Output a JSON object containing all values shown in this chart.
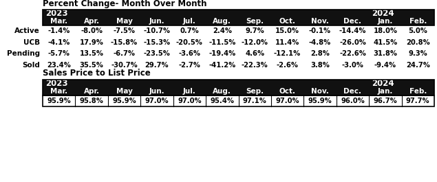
{
  "title1": "Percent Change- Month Over Month",
  "title2": "Sales Price to List Price",
  "header_months": [
    "Mar.",
    "Apr.",
    "May",
    "Jun.",
    "Jul.",
    "Aug.",
    "Sep.",
    "Oct.",
    "Nov.",
    "Dec.",
    "Jan.",
    "Feb."
  ],
  "row_labels": [
    "Active",
    "UCB",
    "Pending",
    "Sold"
  ],
  "table1_data": [
    [
      "-1.4%",
      "-8.0%",
      "-7.5%",
      "-10.7%",
      "0.7%",
      "2.4%",
      "9.7%",
      "15.0%",
      "-0.1%",
      "-14.4%",
      "18.0%",
      "5.0%"
    ],
    [
      "-4.1%",
      "17.9%",
      "-15.8%",
      "-15.3%",
      "-20.5%",
      "-11.5%",
      "-12.0%",
      "11.4%",
      "-4.8%",
      "-26.0%",
      "41.5%",
      "20.8%"
    ],
    [
      "-5.7%",
      "13.5%",
      "-6.7%",
      "-23.5%",
      "-3.6%",
      "-19.4%",
      "4.6%",
      "-12.1%",
      "2.8%",
      "-22.6%",
      "31.8%",
      "9.3%"
    ],
    [
      "23.4%",
      "35.5%",
      "-30.7%",
      "29.7%",
      "-2.7%",
      "-41.2%",
      "-22.3%",
      "-2.6%",
      "3.8%",
      "-3.0%",
      "-9.4%",
      "24.7%"
    ]
  ],
  "table2_data": [
    "95.9%",
    "95.8%",
    "95.9%",
    "97.0%",
    "97.0%",
    "95.4%",
    "97.1%",
    "97.0%",
    "95.9%",
    "96.0%",
    "96.7%",
    "97.7%"
  ],
  "header_bg": "#111111",
  "border_color": "#000000",
  "title_fontsize": 8.5,
  "header_fontsize": 7.5,
  "cell_fontsize": 7.2,
  "row_label_fontsize": 7.5,
  "year_fontsize": 8.5
}
